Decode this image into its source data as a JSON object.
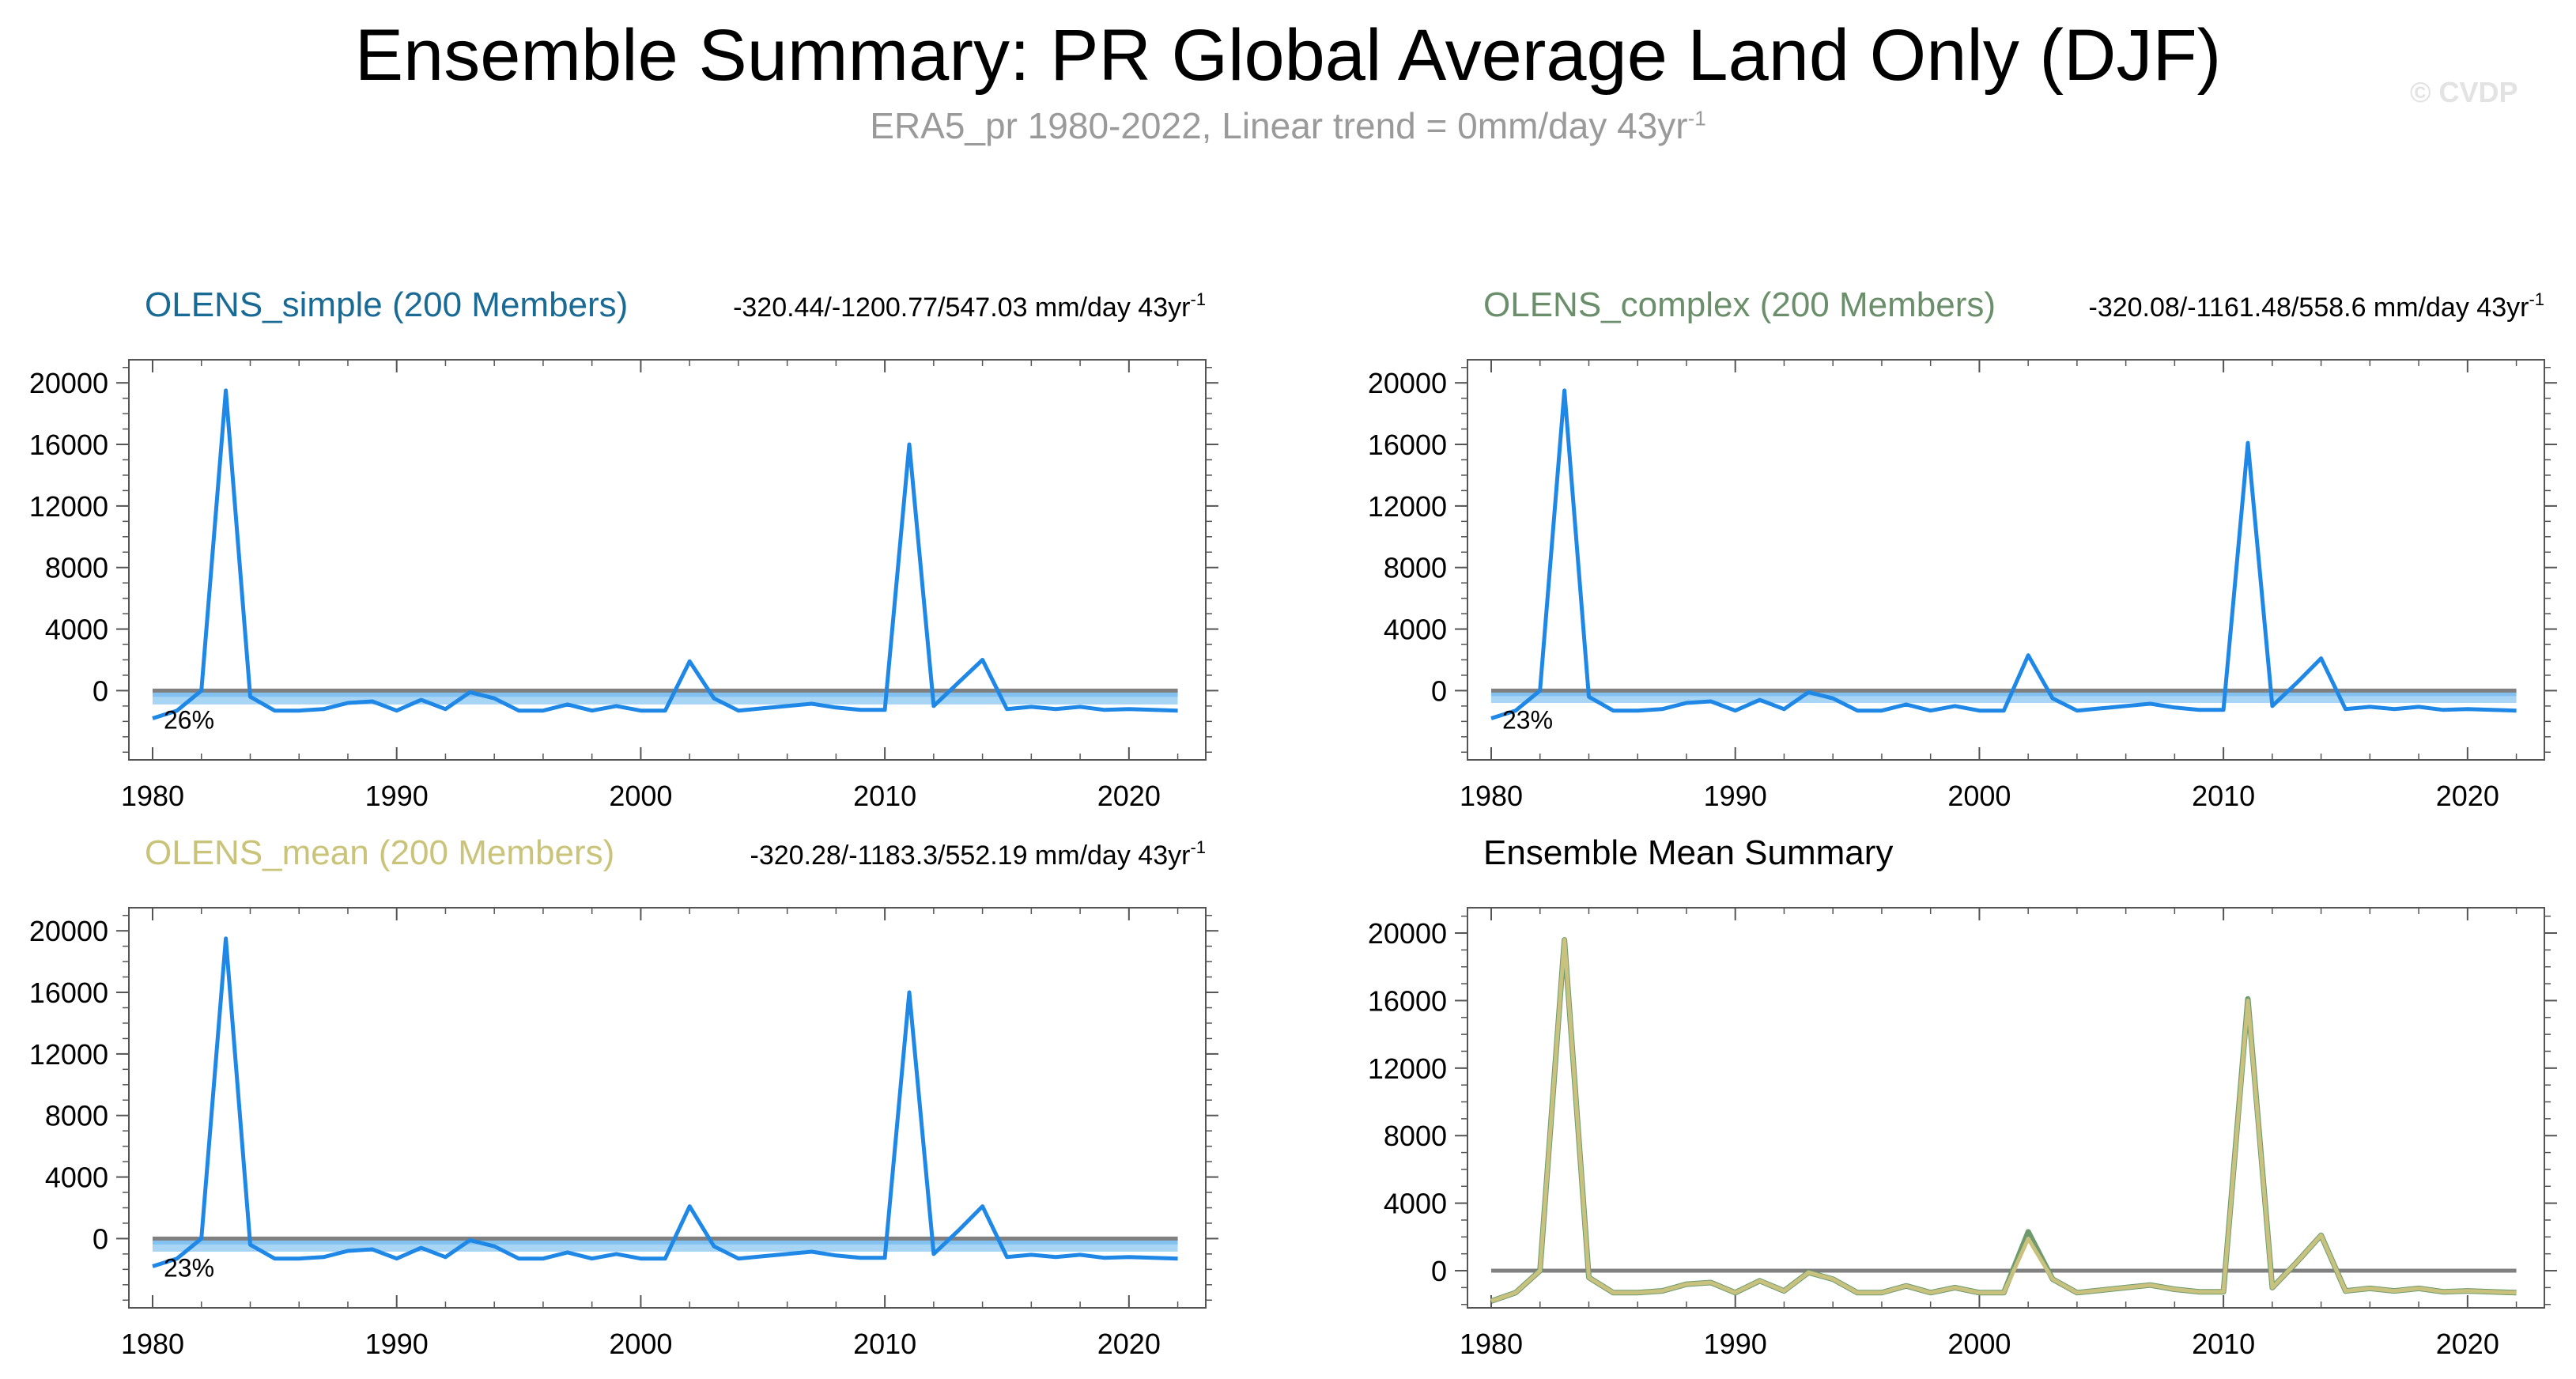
{
  "title": "Ensemble Summary: PR Global Average Land Only (DJF)",
  "subtitle": "ERA5_pr 1980-2022, Linear trend = 0mm/day 43yr",
  "subtitle_sup": "-1",
  "watermark": "© CVDP",
  "colors": {
    "model_line": "#1f88e6",
    "band_outer": "#a9d5f5",
    "band_inner": "#72b8ee",
    "zero_line": "#808080",
    "mean_line": "#c8c27e",
    "mean_under": "#6e9a6e",
    "simple_title": "#1a6a96",
    "complex_title": "#6a8f6a",
    "mean_title": "#c9c47a"
  },
  "chart_data": [
    {
      "type": "line",
      "title": "OLENS_simple (200 Members)",
      "stats": "-320.44/-1200.77/547.03 mm/day 43yr",
      "stats_sup": "-1",
      "percent_label": "26%",
      "x": [
        1980,
        1981,
        1982,
        1983,
        1984,
        1985,
        1986,
        1987,
        1988,
        1989,
        1990,
        1991,
        1992,
        1993,
        1994,
        1995,
        1996,
        1997,
        1998,
        1999,
        2000,
        2001,
        2002,
        2003,
        2004,
        2005,
        2006,
        2007,
        2008,
        2009,
        2010,
        2011,
        2012,
        2013,
        2014,
        2015,
        2016,
        2017,
        2018,
        2019,
        2020,
        2021,
        2022
      ],
      "series": [
        {
          "values": [
            -1800,
            -1300,
            0,
            19500,
            -400,
            -1300,
            -1300,
            -1200,
            -800,
            -700,
            -1300,
            -600,
            -1200,
            -100,
            -500,
            -1300,
            -1300,
            -900,
            -1300,
            -1000,
            -1300,
            -1300,
            1900,
            -500,
            -1300,
            -1150,
            -1000,
            -850,
            -1100,
            -1250,
            -1250,
            16000,
            -1000,
            500,
            2000,
            -1200,
            -1050,
            -1200,
            -1050,
            -1250,
            -1200,
            -1250,
            -1300
          ]
        }
      ],
      "band": {
        "lower": -900,
        "upper": 0
      },
      "xticks": [
        "1980",
        "1990",
        "2000",
        "2010",
        "2020"
      ],
      "yticks": [
        "20000",
        "16000",
        "12000",
        "8000",
        "4000",
        "0"
      ],
      "xlim": [
        1980,
        2022.5
      ],
      "ylim": [
        -4500,
        21500
      ]
    },
    {
      "type": "line",
      "title": "OLENS_complex (200 Members)",
      "stats": "-320.08/-1161.48/558.6 mm/day 43yr",
      "stats_sup": "-1",
      "percent_label": "23%",
      "x": [
        1980,
        1981,
        1982,
        1983,
        1984,
        1985,
        1986,
        1987,
        1988,
        1989,
        1990,
        1991,
        1992,
        1993,
        1994,
        1995,
        1996,
        1997,
        1998,
        1999,
        2000,
        2001,
        2002,
        2003,
        2004,
        2005,
        2006,
        2007,
        2008,
        2009,
        2010,
        2011,
        2012,
        2013,
        2014,
        2015,
        2016,
        2017,
        2018,
        2019,
        2020,
        2021,
        2022
      ],
      "series": [
        {
          "values": [
            -1800,
            -1300,
            0,
            19500,
            -400,
            -1300,
            -1300,
            -1200,
            -800,
            -700,
            -1300,
            -600,
            -1200,
            -100,
            -500,
            -1300,
            -1300,
            -900,
            -1300,
            -1000,
            -1300,
            -1300,
            2300,
            -500,
            -1300,
            -1150,
            -1000,
            -850,
            -1100,
            -1250,
            -1250,
            16100,
            -1000,
            500,
            2100,
            -1200,
            -1050,
            -1200,
            -1050,
            -1250,
            -1200,
            -1250,
            -1300
          ]
        }
      ],
      "band": {
        "lower": -800,
        "upper": 0
      },
      "xticks": [
        "1980",
        "1990",
        "2000",
        "2010",
        "2020"
      ],
      "yticks": [
        "20000",
        "16000",
        "12000",
        "8000",
        "4000",
        "0"
      ],
      "xlim": [
        1980,
        2022.5
      ],
      "ylim": [
        -4500,
        21500
      ]
    },
    {
      "type": "line",
      "title": "OLENS_mean (200 Members)",
      "stats": "-320.28/-1183.3/552.19 mm/day 43yr",
      "stats_sup": "-1",
      "percent_label": "23%",
      "x": [
        1980,
        1981,
        1982,
        1983,
        1984,
        1985,
        1986,
        1987,
        1988,
        1989,
        1990,
        1991,
        1992,
        1993,
        1994,
        1995,
        1996,
        1997,
        1998,
        1999,
        2000,
        2001,
        2002,
        2003,
        2004,
        2005,
        2006,
        2007,
        2008,
        2009,
        2010,
        2011,
        2012,
        2013,
        2014,
        2015,
        2016,
        2017,
        2018,
        2019,
        2020,
        2021,
        2022
      ],
      "series": [
        {
          "values": [
            -1800,
            -1300,
            0,
            19500,
            -400,
            -1300,
            -1300,
            -1200,
            -800,
            -700,
            -1300,
            -600,
            -1200,
            -100,
            -500,
            -1300,
            -1300,
            -900,
            -1300,
            -1000,
            -1300,
            -1300,
            2100,
            -500,
            -1300,
            -1150,
            -1000,
            -850,
            -1100,
            -1250,
            -1250,
            16000,
            -1000,
            500,
            2100,
            -1200,
            -1050,
            -1200,
            -1050,
            -1250,
            -1200,
            -1250,
            -1300
          ]
        }
      ],
      "band": {
        "lower": -850,
        "upper": 0
      },
      "xticks": [
        "1980",
        "1990",
        "2000",
        "2010",
        "2020"
      ],
      "yticks": [
        "20000",
        "16000",
        "12000",
        "8000",
        "4000",
        "0"
      ],
      "xlim": [
        1980,
        2022.5
      ],
      "ylim": [
        -4500,
        21500
      ]
    },
    {
      "type": "line",
      "title": "Ensemble Mean Summary",
      "x": [
        1980,
        1981,
        1982,
        1983,
        1984,
        1985,
        1986,
        1987,
        1988,
        1989,
        1990,
        1991,
        1992,
        1993,
        1994,
        1995,
        1996,
        1997,
        1998,
        1999,
        2000,
        2001,
        2002,
        2003,
        2004,
        2005,
        2006,
        2007,
        2008,
        2009,
        2010,
        2011,
        2012,
        2013,
        2014,
        2015,
        2016,
        2017,
        2018,
        2019,
        2020,
        2021,
        2022
      ],
      "series": [
        {
          "values": [
            -1800,
            -1300,
            0,
            19600,
            -400,
            -1300,
            -1300,
            -1200,
            -800,
            -700,
            -1300,
            -600,
            -1200,
            -100,
            -500,
            -1300,
            -1300,
            -900,
            -1300,
            -1000,
            -1300,
            -1300,
            2300,
            -500,
            -1300,
            -1150,
            -1000,
            -850,
            -1100,
            -1250,
            -1250,
            16100,
            -1000,
            500,
            2100,
            -1200,
            -1050,
            -1200,
            -1050,
            -1250,
            -1200,
            -1250,
            -1300
          ]
        },
        {
          "values": [
            -1800,
            -1300,
            0,
            19600,
            -400,
            -1300,
            -1300,
            -1200,
            -800,
            -700,
            -1300,
            -600,
            -1200,
            -100,
            -500,
            -1300,
            -1300,
            -900,
            -1300,
            -1000,
            -1300,
            -1300,
            1900,
            -500,
            -1300,
            -1150,
            -1000,
            -850,
            -1100,
            -1250,
            -1250,
            16000,
            -1000,
            500,
            2100,
            -1200,
            -1050,
            -1200,
            -1050,
            -1250,
            -1200,
            -1250,
            -1300
          ]
        }
      ],
      "xticks": [
        "1980",
        "1990",
        "2000",
        "2010",
        "2020"
      ],
      "yticks": [
        "20000",
        "16000",
        "12000",
        "8000",
        "4000",
        "0"
      ],
      "xlim": [
        1980,
        2022.5
      ],
      "ylim": [
        -2200,
        21500
      ]
    }
  ]
}
